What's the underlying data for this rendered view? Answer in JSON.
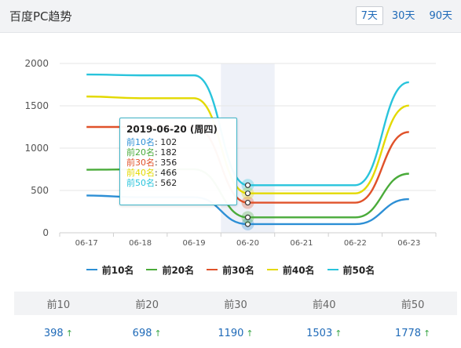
{
  "header": {
    "title": "百度PC趋势",
    "ranges": [
      "7天",
      "30天",
      "90天"
    ],
    "active_range": 0
  },
  "chart_data": {
    "type": "line",
    "categories": [
      "06-17",
      "06-18",
      "06-19",
      "06-20",
      "06-21",
      "06-22",
      "06-23"
    ],
    "ylim": [
      0,
      2000
    ],
    "yticks": [
      0,
      500,
      1000,
      1500,
      2000
    ],
    "highlight_category": "06-20",
    "series": [
      {
        "name": "前10名",
        "color": "#2d8fd5",
        "values": [
          440,
          420,
          420,
          102,
          102,
          102,
          398
        ]
      },
      {
        "name": "前20名",
        "color": "#4aab3a",
        "values": [
          745,
          750,
          750,
          182,
          182,
          182,
          698
        ]
      },
      {
        "name": "前30名",
        "color": "#e0522a",
        "values": [
          1250,
          1250,
          1250,
          356,
          356,
          356,
          1190
        ]
      },
      {
        "name": "前40名",
        "color": "#e3d900",
        "values": [
          1610,
          1590,
          1590,
          466,
          466,
          466,
          1503
        ]
      },
      {
        "name": "前50名",
        "color": "#29c4dc",
        "values": [
          1870,
          1860,
          1860,
          562,
          562,
          562,
          1778
        ]
      }
    ],
    "tooltip": {
      "date": "2019-06-20 (周四)",
      "rows": [
        {
          "label": "前10名",
          "value": "102"
        },
        {
          "label": "前20名",
          "value": "182"
        },
        {
          "label": "前30名",
          "value": "356"
        },
        {
          "label": "前40名",
          "value": "466"
        },
        {
          "label": "前50名",
          "value": "562"
        }
      ]
    }
  },
  "stats": {
    "headers": [
      "前10",
      "前20",
      "前30",
      "前40",
      "前50"
    ],
    "values": [
      "398",
      "698",
      "1190",
      "1503",
      "1778"
    ],
    "arrow": "↑"
  }
}
